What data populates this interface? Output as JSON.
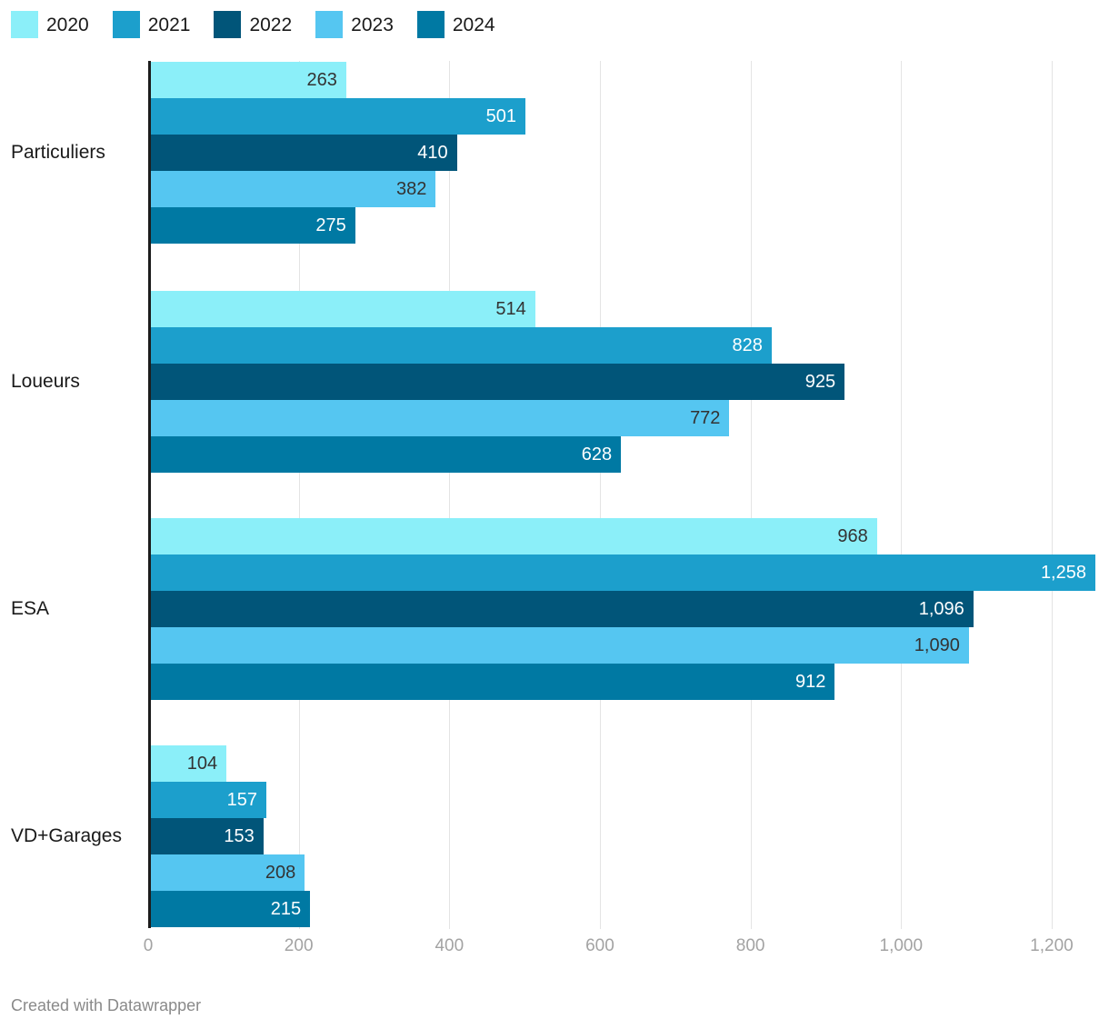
{
  "chart_data": {
    "type": "bar",
    "orientation": "horizontal",
    "title": "",
    "categories": [
      "Particuliers",
      "Loueurs",
      "ESA",
      "VD+Garages"
    ],
    "series": [
      {
        "name": "2020",
        "color": "#8BEFF9",
        "label_color": "#333333",
        "values": [
          263,
          514,
          968,
          104
        ],
        "labels": [
          "263",
          "514",
          "968",
          "104"
        ]
      },
      {
        "name": "2021",
        "color": "#1C9FCC",
        "label_color": "#FFFFFF",
        "values": [
          501,
          828,
          1258,
          157
        ],
        "labels": [
          "501",
          "828",
          "1,258",
          "157"
        ]
      },
      {
        "name": "2022",
        "color": "#015579",
        "label_color": "#FFFFFF",
        "values": [
          410,
          925,
          1096,
          153
        ],
        "labels": [
          "410",
          "925",
          "1,096",
          "153"
        ]
      },
      {
        "name": "2023",
        "color": "#55C6F1",
        "label_color": "#333333",
        "values": [
          382,
          772,
          1090,
          208
        ],
        "labels": [
          "382",
          "772",
          "1,090",
          "208"
        ]
      },
      {
        "name": "2024",
        "color": "#0079A3",
        "label_color": "#FFFFFF",
        "values": [
          275,
          628,
          912,
          215
        ],
        "labels": [
          "275",
          "628",
          "912",
          "215"
        ]
      }
    ],
    "x_axis": {
      "tick_values": [
        0,
        200,
        400,
        600,
        800,
        1000,
        1200
      ],
      "tick_labels": [
        "0",
        "200",
        "400",
        "600",
        "800",
        "1,000",
        "1,200"
      ],
      "max": 1258
    },
    "legend_position": "top-left",
    "grid": "vertical-gridlines",
    "value_labels": "inside-end"
  },
  "layout_colors": {
    "background": "#FFFFFF",
    "gridline": "#E4E4E4",
    "axis_line": "#1C1C1C",
    "tick_label": "#A3A3A3",
    "category_label": "#1A1A1A",
    "legend_label": "#1A1A1A",
    "footer_text": "#8A8A8A"
  },
  "footer": {
    "credit": "Created with Datawrapper"
  }
}
